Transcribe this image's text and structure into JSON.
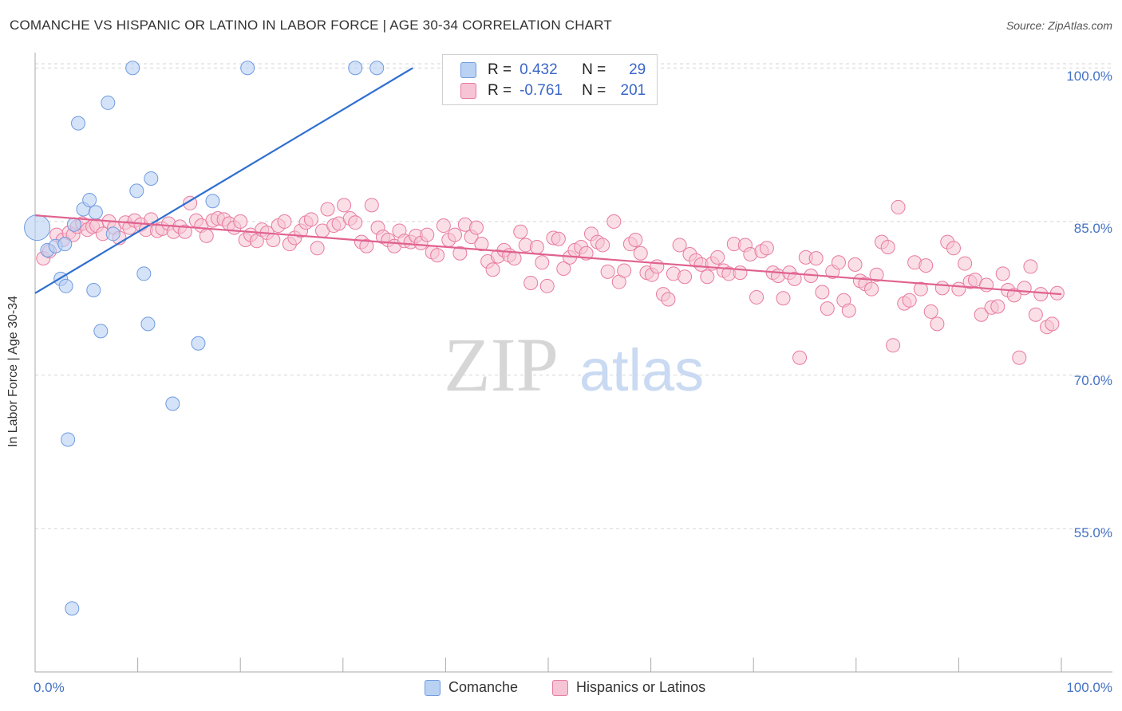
{
  "title": "COMANCHE VS HISPANIC OR LATINO IN LABOR FORCE | AGE 30-34 CORRELATION CHART",
  "source": "Source: ZipAtlas.com",
  "watermark": {
    "zip": "ZIP",
    "atlas": "atlas"
  },
  "colors": {
    "comanche": "#6f9be0",
    "comanche_fill": "#b9d1f3",
    "hispanic": "#e87aa0",
    "hispanic_fill": "#f6c4d4",
    "axis_label": "#4472c4"
  },
  "legend": {
    "comanche": {
      "r_label": "R =",
      "r_value": "0.432",
      "n_label": "N =",
      "n_value": "29",
      "name": "Comanche"
    },
    "hispanic": {
      "r_label": "R =",
      "r_value": "-0.761",
      "n_label": "N =",
      "n_value": "201",
      "name": "Hispanics or Latinos"
    }
  },
  "chart_data": {
    "type": "scatter",
    "title": "COMANCHE VS HISPANIC OR LATINO IN LABOR FORCE | AGE 30-34 CORRELATION CHART",
    "xlabel": "",
    "ylabel": "In Labor Force | Age 30-34",
    "xlim": [
      0,
      100
    ],
    "ylim": [
      41.0,
      101.5
    ],
    "x_tick_labels": [
      "0.0%",
      "100.0%"
    ],
    "y_ticks": [
      100,
      85,
      70,
      55
    ],
    "y_tick_labels": [
      "100.0%",
      "85.0%",
      "70.0%",
      "55.0%"
    ],
    "grid": true,
    "series": [
      {
        "name": "Comanche",
        "points": [
          [
            0.2,
            84.4
          ],
          [
            1.2,
            82.2
          ],
          [
            2.0,
            82.6
          ],
          [
            2.5,
            79.4
          ],
          [
            2.9,
            82.8
          ],
          [
            3.0,
            78.7
          ],
          [
            3.2,
            63.7
          ],
          [
            3.6,
            47.2
          ],
          [
            3.8,
            84.7
          ],
          [
            4.2,
            94.6
          ],
          [
            4.7,
            86.2
          ],
          [
            5.3,
            87.1
          ],
          [
            5.7,
            78.3
          ],
          [
            5.9,
            85.9
          ],
          [
            6.4,
            74.3
          ],
          [
            7.1,
            96.6
          ],
          [
            7.6,
            83.8
          ],
          [
            9.5,
            100.0
          ],
          [
            9.9,
            88.0
          ],
          [
            10.6,
            79.9
          ],
          [
            11.0,
            75.0
          ],
          [
            11.3,
            89.2
          ],
          [
            13.4,
            67.2
          ],
          [
            15.9,
            73.1
          ],
          [
            17.3,
            87.0
          ],
          [
            20.7,
            100.0
          ],
          [
            31.2,
            100.0
          ],
          [
            33.3,
            100.0
          ]
        ],
        "trend": [
          [
            0,
            78.0
          ],
          [
            36.8,
            100.0
          ]
        ]
      },
      {
        "name": "Hispanics or Latinos",
        "points": [
          [
            0.8,
            81.4
          ],
          [
            1.4,
            82.1
          ],
          [
            2.1,
            83.7
          ],
          [
            2.7,
            83.2
          ],
          [
            3.3,
            83.9
          ],
          [
            3.7,
            83.7
          ],
          [
            4.1,
            84.5
          ],
          [
            4.6,
            84.8
          ],
          [
            5.1,
            84.2
          ],
          [
            5.6,
            84.5
          ],
          [
            6.0,
            84.6
          ],
          [
            6.6,
            83.8
          ],
          [
            7.2,
            85.0
          ],
          [
            7.7,
            84.4
          ],
          [
            8.2,
            83.4
          ],
          [
            8.8,
            84.9
          ],
          [
            9.2,
            84.4
          ],
          [
            9.7,
            85.1
          ],
          [
            10.3,
            84.7
          ],
          [
            10.8,
            84.2
          ],
          [
            11.3,
            85.2
          ],
          [
            11.9,
            84.1
          ],
          [
            12.4,
            84.3
          ],
          [
            13.0,
            84.8
          ],
          [
            13.5,
            84.0
          ],
          [
            14.1,
            84.5
          ],
          [
            14.6,
            84.0
          ],
          [
            15.1,
            86.8
          ],
          [
            15.7,
            85.1
          ],
          [
            16.2,
            84.6
          ],
          [
            16.7,
            83.6
          ],
          [
            17.3,
            85.1
          ],
          [
            17.8,
            85.3
          ],
          [
            18.4,
            85.2
          ],
          [
            18.9,
            84.8
          ],
          [
            19.4,
            84.4
          ],
          [
            20.0,
            85.0
          ],
          [
            20.5,
            83.2
          ],
          [
            21.0,
            83.7
          ],
          [
            21.6,
            83.1
          ],
          [
            22.1,
            84.2
          ],
          [
            22.6,
            83.9
          ],
          [
            23.2,
            83.2
          ],
          [
            23.7,
            84.6
          ],
          [
            24.3,
            85.0
          ],
          [
            24.8,
            82.8
          ],
          [
            25.3,
            83.4
          ],
          [
            25.9,
            84.1
          ],
          [
            26.4,
            84.9
          ],
          [
            26.9,
            85.2
          ],
          [
            27.5,
            82.4
          ],
          [
            28.0,
            84.1
          ],
          [
            28.5,
            86.2
          ],
          [
            29.1,
            84.6
          ],
          [
            29.6,
            84.8
          ],
          [
            30.1,
            86.6
          ],
          [
            30.7,
            85.3
          ],
          [
            31.2,
            84.9
          ],
          [
            31.8,
            83.0
          ],
          [
            32.3,
            82.6
          ],
          [
            32.8,
            86.6
          ],
          [
            33.4,
            84.4
          ],
          [
            33.9,
            83.5
          ],
          [
            34.4,
            83.2
          ],
          [
            35.0,
            82.6
          ],
          [
            35.5,
            84.1
          ],
          [
            36.0,
            83.1
          ],
          [
            36.6,
            83.0
          ],
          [
            37.1,
            83.6
          ],
          [
            37.6,
            82.9
          ],
          [
            38.2,
            83.7
          ],
          [
            38.7,
            82.0
          ],
          [
            39.2,
            81.7
          ],
          [
            39.8,
            84.6
          ],
          [
            40.3,
            83.2
          ],
          [
            40.9,
            83.7
          ],
          [
            41.4,
            81.9
          ],
          [
            41.9,
            84.7
          ],
          [
            42.5,
            83.5
          ],
          [
            43.0,
            84.4
          ],
          [
            43.5,
            82.8
          ],
          [
            44.1,
            81.1
          ],
          [
            44.6,
            80.3
          ],
          [
            45.1,
            81.6
          ],
          [
            45.7,
            82.2
          ],
          [
            46.2,
            81.7
          ],
          [
            46.7,
            81.4
          ],
          [
            47.3,
            84.0
          ],
          [
            47.8,
            82.7
          ],
          [
            48.3,
            79.0
          ],
          [
            48.9,
            82.5
          ],
          [
            49.4,
            81.0
          ],
          [
            49.9,
            78.7
          ],
          [
            50.5,
            83.4
          ],
          [
            51.0,
            83.3
          ],
          [
            51.5,
            80.4
          ],
          [
            52.1,
            81.5
          ],
          [
            52.6,
            82.2
          ],
          [
            53.2,
            82.5
          ],
          [
            53.7,
            81.9
          ],
          [
            54.2,
            83.8
          ],
          [
            54.8,
            83.0
          ],
          [
            55.3,
            82.7
          ],
          [
            55.8,
            80.1
          ],
          [
            56.4,
            85.0
          ],
          [
            56.9,
            79.1
          ],
          [
            57.4,
            80.2
          ],
          [
            58.0,
            82.8
          ],
          [
            58.5,
            83.2
          ],
          [
            59.0,
            81.9
          ],
          [
            59.6,
            80.0
          ],
          [
            60.1,
            79.8
          ],
          [
            60.6,
            80.6
          ],
          [
            61.2,
            77.9
          ],
          [
            61.7,
            77.4
          ],
          [
            62.2,
            79.9
          ],
          [
            62.8,
            82.7
          ],
          [
            63.3,
            79.6
          ],
          [
            63.8,
            81.8
          ],
          [
            64.4,
            81.2
          ],
          [
            64.9,
            80.8
          ],
          [
            65.5,
            79.6
          ],
          [
            66.0,
            80.9
          ],
          [
            66.5,
            81.5
          ],
          [
            67.1,
            80.2
          ],
          [
            67.6,
            79.9
          ],
          [
            68.1,
            82.8
          ],
          [
            68.7,
            80.0
          ],
          [
            69.2,
            82.7
          ],
          [
            69.7,
            81.8
          ],
          [
            70.3,
            77.6
          ],
          [
            70.8,
            82.1
          ],
          [
            71.3,
            82.4
          ],
          [
            71.9,
            80.0
          ],
          [
            72.4,
            79.7
          ],
          [
            72.9,
            77.5
          ],
          [
            73.5,
            80.0
          ],
          [
            74.0,
            79.4
          ],
          [
            74.5,
            71.7
          ],
          [
            75.1,
            81.5
          ],
          [
            75.6,
            79.7
          ],
          [
            76.1,
            81.4
          ],
          [
            76.7,
            78.1
          ],
          [
            77.2,
            76.5
          ],
          [
            77.7,
            80.1
          ],
          [
            78.3,
            81.0
          ],
          [
            78.8,
            77.3
          ],
          [
            79.3,
            76.3
          ],
          [
            79.9,
            80.8
          ],
          [
            80.4,
            79.2
          ],
          [
            80.9,
            78.9
          ],
          [
            81.5,
            78.4
          ],
          [
            82.0,
            79.8
          ],
          [
            82.5,
            83.0
          ],
          [
            83.1,
            82.5
          ],
          [
            83.6,
            72.9
          ],
          [
            84.1,
            86.4
          ],
          [
            84.7,
            77.0
          ],
          [
            85.2,
            77.3
          ],
          [
            85.7,
            81.0
          ],
          [
            86.3,
            78.4
          ],
          [
            86.8,
            80.7
          ],
          [
            87.3,
            76.2
          ],
          [
            87.9,
            75.0
          ],
          [
            88.4,
            78.5
          ],
          [
            88.9,
            83.0
          ],
          [
            89.5,
            82.4
          ],
          [
            90.0,
            78.4
          ],
          [
            90.6,
            80.9
          ],
          [
            91.1,
            79.1
          ],
          [
            91.6,
            79.3
          ],
          [
            92.2,
            75.9
          ],
          [
            92.7,
            78.8
          ],
          [
            93.2,
            76.6
          ],
          [
            93.8,
            76.7
          ],
          [
            94.3,
            79.9
          ],
          [
            94.8,
            78.3
          ],
          [
            95.4,
            77.8
          ],
          [
            95.9,
            71.7
          ],
          [
            96.4,
            78.5
          ],
          [
            97.0,
            80.6
          ],
          [
            97.5,
            75.9
          ],
          [
            98.0,
            77.9
          ],
          [
            98.6,
            74.7
          ],
          [
            99.1,
            75.0
          ],
          [
            99.6,
            78.0
          ]
        ],
        "trend": [
          [
            0,
            85.6
          ],
          [
            100,
            77.9
          ]
        ]
      }
    ]
  }
}
